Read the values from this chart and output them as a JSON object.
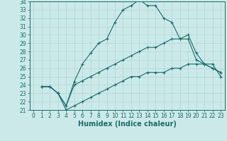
{
  "xlabel": "Humidex (Indice chaleur)",
  "xlim": [
    -0.5,
    23.5
  ],
  "ylim": [
    21,
    34
  ],
  "xticks": [
    0,
    1,
    2,
    3,
    4,
    5,
    6,
    7,
    8,
    9,
    10,
    11,
    12,
    13,
    14,
    15,
    16,
    17,
    18,
    19,
    20,
    21,
    22,
    23
  ],
  "yticks": [
    21,
    22,
    23,
    24,
    25,
    26,
    27,
    28,
    29,
    30,
    31,
    32,
    33,
    34
  ],
  "background_color": "#cce9e9",
  "grid_color": "#b0d8d8",
  "line_color": "#1a6b6b",
  "line1_x": [
    1,
    2,
    3,
    4,
    5,
    6,
    7,
    8,
    9,
    10,
    11,
    12,
    13,
    14,
    15,
    16,
    17,
    18,
    19,
    20,
    21,
    22,
    23
  ],
  "line1_y": [
    23.8,
    23.8,
    23.0,
    21.5,
    24.4,
    26.5,
    27.8,
    29.0,
    29.5,
    31.5,
    33.0,
    33.5,
    34.2,
    33.5,
    33.5,
    32.0,
    31.5,
    29.5,
    29.5,
    27.0,
    26.5,
    26.5,
    25.0
  ],
  "line2_x": [
    1,
    2,
    3,
    4,
    5,
    6,
    7,
    8,
    9,
    10,
    11,
    12,
    13,
    14,
    15,
    16,
    17,
    18,
    19,
    20,
    21,
    22,
    23
  ],
  "line2_y": [
    23.8,
    23.8,
    23.0,
    21.5,
    24.0,
    24.5,
    25.0,
    25.5,
    26.0,
    26.5,
    27.0,
    27.5,
    28.0,
    28.5,
    28.5,
    29.0,
    29.5,
    29.5,
    30.0,
    27.8,
    26.5,
    26.0,
    25.5
  ],
  "line3_x": [
    1,
    2,
    3,
    4,
    5,
    6,
    7,
    8,
    9,
    10,
    11,
    12,
    13,
    14,
    15,
    16,
    17,
    18,
    19,
    20,
    21,
    22,
    23
  ],
  "line3_y": [
    23.8,
    23.8,
    23.0,
    21.0,
    21.5,
    22.0,
    22.5,
    23.0,
    23.5,
    24.0,
    24.5,
    25.0,
    25.0,
    25.5,
    25.5,
    25.5,
    26.0,
    26.0,
    26.5,
    26.5,
    26.5,
    26.0,
    25.5
  ],
  "tick_fontsize": 5.5,
  "xlabel_fontsize": 7.0
}
